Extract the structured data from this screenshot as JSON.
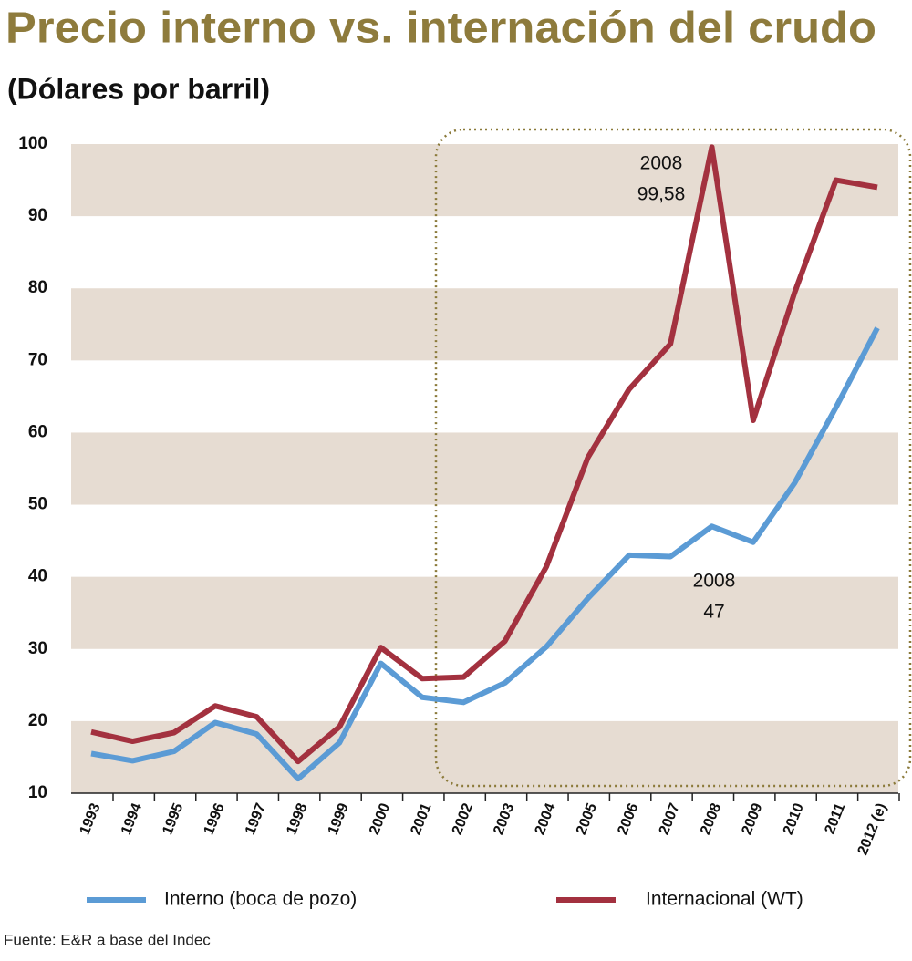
{
  "chart_data": {
    "type": "line",
    "title": "Precio interno vs. internación del crudo",
    "subtitle": "(Dólares por barril)",
    "source": "Fuente: E&R a base del Indec",
    "categories": [
      "1993",
      "1994",
      "1995",
      "1996",
      "1997",
      "1998",
      "1999",
      "2000",
      "2001",
      "2002",
      "2003",
      "2004",
      "2005",
      "2006",
      "2007",
      "2008",
      "2009",
      "2010",
      "2011",
      "2012 (e)"
    ],
    "series": [
      {
        "name": "Interno (boca de pozo)",
        "color": "#5b9bd5",
        "values": [
          15.5,
          14.5,
          15.8,
          19.8,
          18.2,
          12,
          17,
          28,
          23.3,
          22.6,
          25.3,
          30.3,
          37,
          43,
          42.8,
          47,
          44.8,
          53,
          63.5,
          74.5
        ]
      },
      {
        "name": "Internacional (WT)",
        "color": "#a3313f",
        "values": [
          18.5,
          17.2,
          18.4,
          22.1,
          20.6,
          14.4,
          19.2,
          30.2,
          25.9,
          26.1,
          31.1,
          41.4,
          56.5,
          66,
          72.3,
          99.58,
          61.7,
          79.4,
          95,
          94
        ]
      }
    ],
    "annotations": [
      {
        "lines": [
          "2008",
          "99,58"
        ]
      },
      {
        "lines": [
          "2008",
          "47"
        ]
      }
    ],
    "ylim": [
      10,
      100
    ],
    "yticks": [
      10,
      20,
      30,
      40,
      50,
      60,
      70,
      80,
      90,
      100
    ],
    "band_color": "#e6dcd2",
    "legend": "bottom"
  }
}
